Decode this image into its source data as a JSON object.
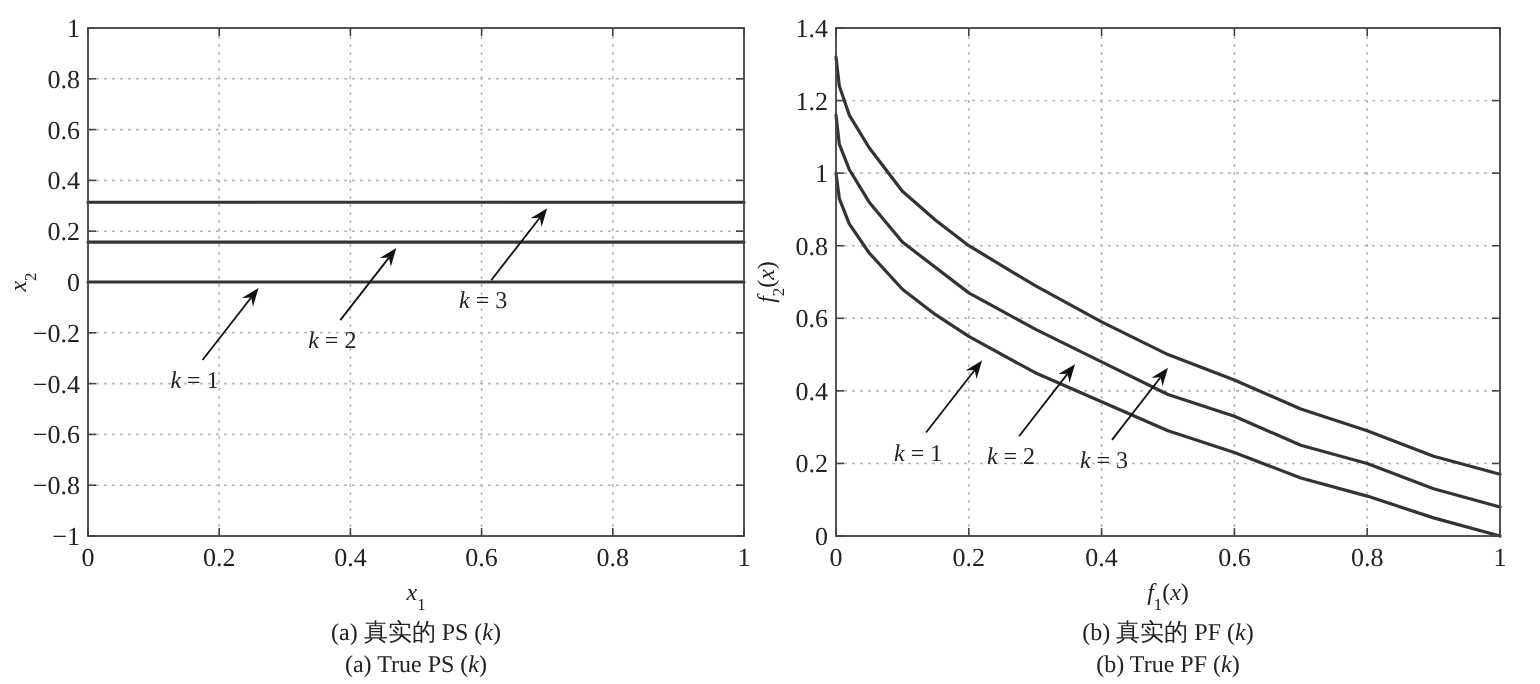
{
  "chart_data": [
    {
      "type": "line",
      "title": "(a) 真实的 PS (*k*)",
      "subtitle": "(a) True PS (*k*)",
      "xlabel": "*x*$_{1}$",
      "ylabel": "*x*$_{2}$",
      "grid": true,
      "line_style": "solid",
      "xlim": [
        0,
        1
      ],
      "ylim": [
        -1,
        1
      ],
      "xticks": [
        0,
        0.2,
        0.4,
        0.6,
        0.8,
        1
      ],
      "yticks": [
        {
          "value": -1,
          "label": "−1"
        },
        {
          "value": -0.8,
          "label": "−0.8"
        },
        {
          "value": -0.6,
          "label": "−0.6"
        },
        {
          "value": -0.4,
          "label": "−0.4"
        },
        {
          "value": -0.2,
          "label": "−0.2"
        },
        0,
        0.2,
        0.4,
        0.6,
        0.8,
        1
      ],
      "series": [
        {
          "color": "#333333",
          "x": [
            0,
            1
          ],
          "values": [
            0,
            0
          ]
        },
        {
          "color": "#333333",
          "x": [
            0,
            1
          ],
          "values": [
            0.157,
            0.157
          ]
        },
        {
          "color": "#333333",
          "x": [
            0,
            1
          ],
          "values": [
            0.314,
            0.314
          ]
        }
      ],
      "annotations": [
        {
          "text": "*k* = 1",
          "x": 0.26,
          "y": 0
        },
        {
          "text": "*k* = 2",
          "x": 0.47,
          "y": 0.157
        },
        {
          "text": "*k* = 3",
          "x": 0.7,
          "y": 0.314
        }
      ]
    },
    {
      "type": "line",
      "title": "(b) 真实的 PF (*k*)",
      "subtitle": "(b) True PF (*k*)",
      "xlabel": "*f*$_{1}$(*x*)",
      "ylabel": "*f*$_{2}$(*x*)",
      "grid": true,
      "line_style": "solid",
      "xlim": [
        0,
        1
      ],
      "ylim": [
        0,
        1.4
      ],
      "xticks": [
        0,
        0.2,
        0.4,
        0.6,
        0.8,
        1
      ],
      "yticks": [
        0,
        0.2,
        0.4,
        0.6,
        0.8,
        1,
        1.2,
        1.4
      ],
      "series": [
        {
          "color": "#333333",
          "x": [
            0,
            0.005,
            0.02,
            0.05,
            0.1,
            0.15,
            0.2,
            0.3,
            0.4,
            0.5,
            0.6,
            0.7,
            0.8,
            0.9,
            1
          ],
          "values": [
            1,
            0.93,
            0.86,
            0.78,
            0.68,
            0.61,
            0.55,
            0.45,
            0.37,
            0.29,
            0.23,
            0.16,
            0.11,
            0.05,
            0
          ]
        },
        {
          "color": "#333333",
          "x": [
            0,
            0.005,
            0.02,
            0.05,
            0.1,
            0.15,
            0.2,
            0.3,
            0.4,
            0.5,
            0.6,
            0.7,
            0.8,
            0.9,
            1
          ],
          "values": [
            1.16,
            1.08,
            1.01,
            0.92,
            0.81,
            0.74,
            0.67,
            0.57,
            0.48,
            0.39,
            0.33,
            0.25,
            0.2,
            0.13,
            0.08
          ]
        },
        {
          "color": "#333333",
          "x": [
            0,
            0.005,
            0.02,
            0.05,
            0.1,
            0.15,
            0.2,
            0.3,
            0.4,
            0.5,
            0.6,
            0.7,
            0.8,
            0.9,
            1
          ],
          "values": [
            1.32,
            1.24,
            1.16,
            1.07,
            0.95,
            0.87,
            0.8,
            0.69,
            0.59,
            0.5,
            0.43,
            0.35,
            0.29,
            0.22,
            0.17
          ]
        }
      ],
      "annotations": [
        {
          "text": "*k* = 1",
          "x": 0.22,
          "y": 0.5
        },
        {
          "text": "*k* = 2",
          "x": 0.36,
          "y": 0.49
        },
        {
          "text": "*k* = 3",
          "x": 0.5,
          "y": 0.48
        }
      ]
    }
  ]
}
